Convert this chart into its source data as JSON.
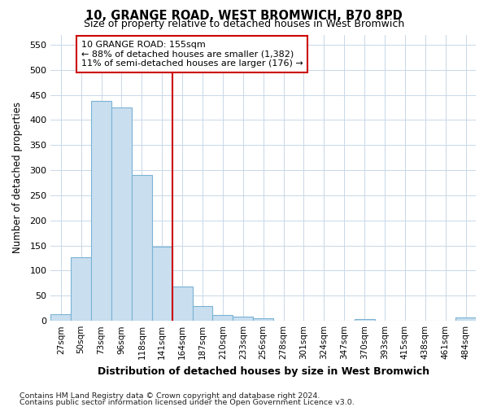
{
  "title": "10, GRANGE ROAD, WEST BROMWICH, B70 8PD",
  "subtitle": "Size of property relative to detached houses in West Bromwich",
  "xlabel": "Distribution of detached houses by size in West Bromwich",
  "ylabel": "Number of detached properties",
  "footer_line1": "Contains HM Land Registry data © Crown copyright and database right 2024.",
  "footer_line2": "Contains public sector information licensed under the Open Government Licence v3.0.",
  "bin_labels": [
    "27sqm",
    "50sqm",
    "73sqm",
    "96sqm",
    "118sqm",
    "141sqm",
    "164sqm",
    "187sqm",
    "210sqm",
    "233sqm",
    "256sqm",
    "278sqm",
    "301sqm",
    "324sqm",
    "347sqm",
    "370sqm",
    "393sqm",
    "415sqm",
    "438sqm",
    "461sqm",
    "484sqm"
  ],
  "bar_values": [
    14,
    126,
    438,
    425,
    291,
    148,
    68,
    29,
    12,
    8,
    5,
    0,
    0,
    0,
    0,
    4,
    0,
    0,
    0,
    0,
    6
  ],
  "bar_color": "#c9dff0",
  "bar_edgecolor": "#7ab3d4",
  "ylim": [
    0,
    570
  ],
  "yticks": [
    0,
    50,
    100,
    150,
    200,
    250,
    300,
    350,
    400,
    450,
    500,
    550
  ],
  "vline_color": "#cc0000",
  "annotation_text": "10 GRANGE ROAD: 155sqm\n← 88% of detached houses are smaller (1,382)\n11% of semi-detached houses are larger (176) →",
  "annotation_box_color": "#ffffff",
  "annotation_box_edgecolor": "#cc0000",
  "background_color": "#ffffff",
  "grid_color": "#c8d8e8"
}
